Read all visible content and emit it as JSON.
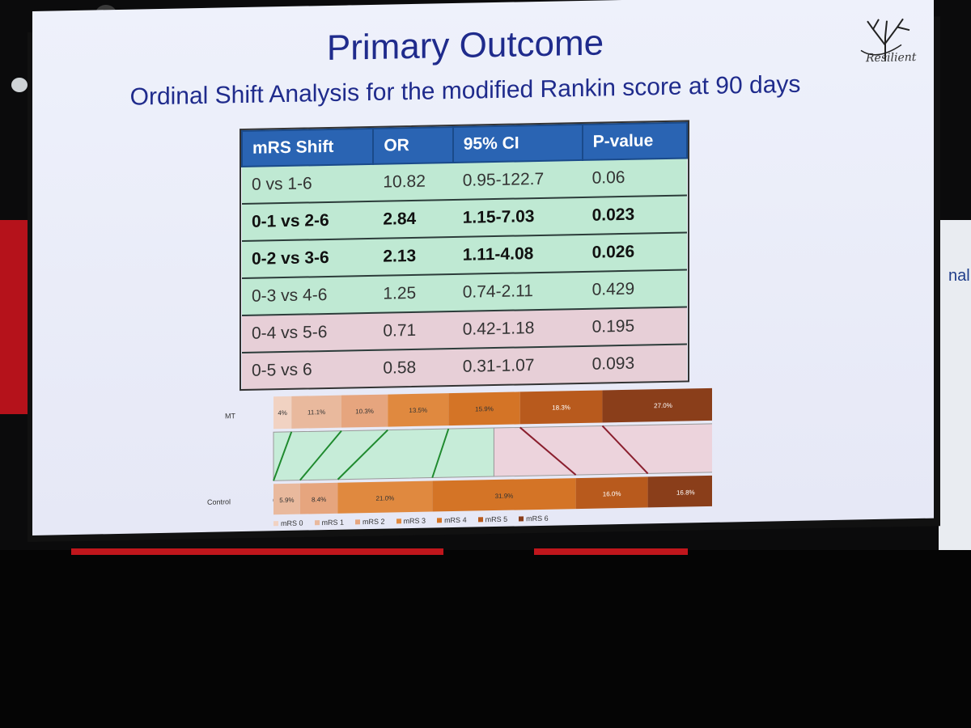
{
  "slide": {
    "title": "Primary Outcome",
    "subtitle": "Ordinal Shift Analysis for the modified Rankin score at 90 days",
    "logo_text": "Resilient"
  },
  "table": {
    "headers": [
      "mRS Shift",
      "OR",
      "95% CI",
      "P-value"
    ],
    "rows": [
      {
        "shift": "0 vs 1-6",
        "or": "10.82",
        "ci": "0.95-122.7",
        "p": "0.06",
        "group": "good",
        "bold": false
      },
      {
        "shift": "0-1 vs 2-6",
        "or": "2.84",
        "ci": "1.15-7.03",
        "p": "0.023",
        "group": "good",
        "bold": true
      },
      {
        "shift": "0-2 vs 3-6",
        "or": "2.13",
        "ci": "1.11-4.08",
        "p": "0.026",
        "group": "good",
        "bold": true
      },
      {
        "shift": "0-3 vs 4-6",
        "or": "1.25",
        "ci": "0.74-2.11",
        "p": "0.429",
        "group": "good",
        "bold": false
      },
      {
        "shift": "0-4 vs 5-6",
        "or": "0.71",
        "ci": "0.42-1.18",
        "p": "0.195",
        "group": "bad",
        "bold": false
      },
      {
        "shift": "0-5 vs 6",
        "or": "0.58",
        "ci": "0.31-1.07",
        "p": "0.093",
        "group": "bad",
        "bold": false
      }
    ]
  },
  "chart_data": {
    "type": "bar",
    "categories": [
      "MT",
      "Control"
    ],
    "series": [
      {
        "name": "mRS 0",
        "values": [
          4.0,
          0.0
        ],
        "color": "#f1d2c2"
      },
      {
        "name": "mRS 1",
        "values": [
          11.1,
          5.9
        ],
        "color": "#e9b99d"
      },
      {
        "name": "mRS 2",
        "values": [
          10.3,
          8.4
        ],
        "color": "#e6a57e"
      },
      {
        "name": "mRS 3",
        "values": [
          13.5,
          21.0
        ],
        "color": "#e0893f"
      },
      {
        "name": "mRS 4",
        "values": [
          15.9,
          31.9
        ],
        "color": "#d47426"
      },
      {
        "name": "mRS 5",
        "values": [
          18.3,
          16.0
        ],
        "color": "#b85a1d"
      },
      {
        "name": "mRS 6",
        "values": [
          27.0,
          16.8
        ],
        "color": "#8a3e1a"
      }
    ],
    "value_labels": {
      "MT": [
        "4%",
        "11.1%",
        "10.3%",
        "13.5%",
        "15.9%",
        "18.3%",
        "27.0%"
      ],
      "Control": [
        "0%",
        "5.9%",
        "8.4%",
        "21.0%",
        "31.9%",
        "16.0%",
        "16.8%"
      ]
    },
    "xlim": [
      0,
      100
    ],
    "stacked": true,
    "legend": "bottom"
  },
  "colors": {
    "title_blue": "#1f2b8c",
    "header_blue": "#2a64b3",
    "good_green": "#bfe9d3",
    "bad_pink": "#e7cfd7"
  }
}
